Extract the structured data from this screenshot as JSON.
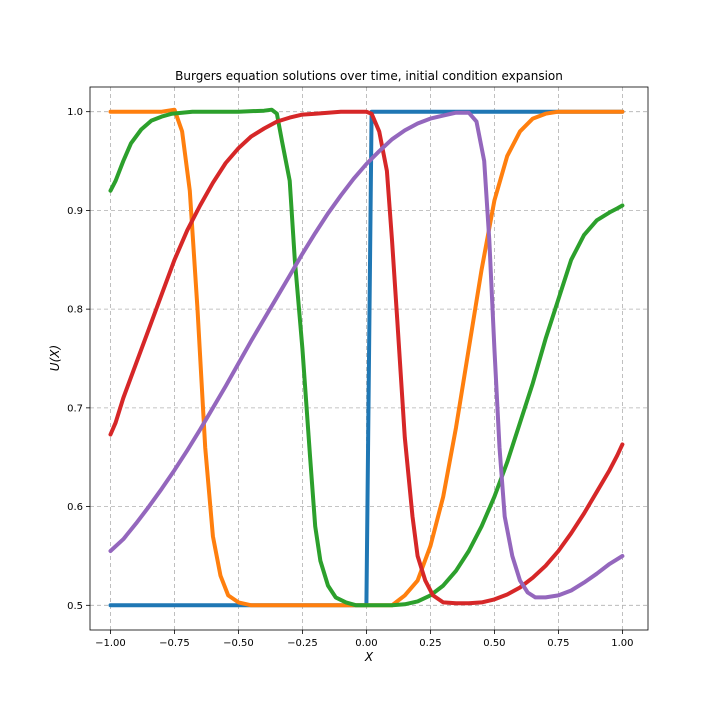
{
  "chart_data": {
    "type": "line",
    "title": "Burgers equation solutions over time, initial condition expansion",
    "xlabel": "X",
    "ylabel": "U(X)",
    "xlim": [
      -1.08,
      1.1
    ],
    "ylim": [
      0.475,
      1.025
    ],
    "xticks": [
      -1.0,
      -0.75,
      -0.5,
      -0.25,
      0.0,
      0.25,
      0.5,
      0.75,
      1.0
    ],
    "xtick_labels": [
      "−1.00",
      "−0.75",
      "−0.50",
      "−0.25",
      "0.00",
      "0.25",
      "0.50",
      "0.75",
      "1.00"
    ],
    "yticks": [
      0.5,
      0.6,
      0.7,
      0.8,
      0.9,
      1.0
    ],
    "ytick_labels": [
      "0.5",
      "0.6",
      "0.7",
      "0.8",
      "0.9",
      "1.0"
    ],
    "grid": true,
    "series": [
      {
        "color": "#1f77b4",
        "x": [
          -1.0,
          0.0,
          0.02,
          1.0
        ],
        "y": [
          0.5,
          0.5,
          1.0,
          1.0
        ]
      },
      {
        "color": "#ff7f0e",
        "x": [
          -1.0,
          -0.8,
          -0.75,
          -0.72,
          -0.69,
          -0.66,
          -0.63,
          -0.6,
          -0.57,
          -0.54,
          -0.5,
          -0.45,
          -0.3,
          -0.1,
          0.1,
          0.15,
          0.2,
          0.25,
          0.3,
          0.35,
          0.4,
          0.45,
          0.5,
          0.55,
          0.6,
          0.65,
          0.7,
          0.75,
          0.8,
          1.0
        ],
        "y": [
          1.0,
          1.0,
          1.002,
          0.98,
          0.92,
          0.8,
          0.66,
          0.57,
          0.53,
          0.51,
          0.503,
          0.5,
          0.5,
          0.5,
          0.5,
          0.51,
          0.525,
          0.56,
          0.61,
          0.68,
          0.76,
          0.84,
          0.91,
          0.955,
          0.98,
          0.993,
          0.998,
          1.0,
          1.0,
          1.0
        ]
      },
      {
        "color": "#2ca02c",
        "x": [
          -1.0,
          -0.98,
          -0.95,
          -0.92,
          -0.88,
          -0.84,
          -0.8,
          -0.76,
          -0.72,
          -0.68,
          -0.6,
          -0.5,
          -0.4,
          -0.37,
          -0.35,
          -0.33,
          -0.3,
          -0.28,
          -0.25,
          -0.22,
          -0.2,
          -0.18,
          -0.15,
          -0.12,
          -0.08,
          -0.04,
          0.0,
          0.05,
          0.1,
          0.15,
          0.2,
          0.25,
          0.3,
          0.35,
          0.4,
          0.45,
          0.5,
          0.55,
          0.6,
          0.65,
          0.7,
          0.75,
          0.8,
          0.85,
          0.9,
          0.95,
          0.98,
          1.0
        ],
        "y": [
          0.92,
          0.93,
          0.95,
          0.968,
          0.982,
          0.991,
          0.995,
          0.998,
          0.999,
          1.0,
          1.0,
          1.0,
          1.001,
          1.002,
          0.998,
          0.97,
          0.93,
          0.85,
          0.76,
          0.65,
          0.58,
          0.545,
          0.52,
          0.508,
          0.503,
          0.5,
          0.5,
          0.5,
          0.5,
          0.501,
          0.504,
          0.51,
          0.52,
          0.535,
          0.555,
          0.58,
          0.61,
          0.645,
          0.685,
          0.725,
          0.77,
          0.81,
          0.85,
          0.875,
          0.89,
          0.898,
          0.902,
          0.905
        ]
      },
      {
        "color": "#d62728",
        "x": [
          -1.0,
          -0.98,
          -0.95,
          -0.9,
          -0.85,
          -0.8,
          -0.75,
          -0.7,
          -0.65,
          -0.6,
          -0.55,
          -0.5,
          -0.45,
          -0.4,
          -0.35,
          -0.3,
          -0.25,
          -0.2,
          -0.15,
          -0.1,
          -0.05,
          0.0,
          0.02,
          0.05,
          0.08,
          0.1,
          0.12,
          0.15,
          0.18,
          0.2,
          0.23,
          0.26,
          0.3,
          0.35,
          0.4,
          0.45,
          0.5,
          0.55,
          0.6,
          0.65,
          0.7,
          0.75,
          0.8,
          0.85,
          0.9,
          0.95,
          0.98,
          1.0
        ],
        "y": [
          0.673,
          0.685,
          0.71,
          0.745,
          0.78,
          0.815,
          0.85,
          0.88,
          0.905,
          0.928,
          0.948,
          0.963,
          0.975,
          0.983,
          0.99,
          0.994,
          0.997,
          0.998,
          0.999,
          1.0,
          1.0,
          1.0,
          0.998,
          0.98,
          0.94,
          0.87,
          0.79,
          0.67,
          0.59,
          0.55,
          0.525,
          0.51,
          0.503,
          0.502,
          0.502,
          0.503,
          0.506,
          0.511,
          0.518,
          0.528,
          0.54,
          0.555,
          0.573,
          0.593,
          0.615,
          0.637,
          0.652,
          0.663
        ]
      },
      {
        "color": "#9467bd",
        "x": [
          -1.0,
          -0.95,
          -0.9,
          -0.85,
          -0.8,
          -0.75,
          -0.7,
          -0.65,
          -0.6,
          -0.55,
          -0.5,
          -0.45,
          -0.4,
          -0.35,
          -0.3,
          -0.25,
          -0.2,
          -0.15,
          -0.1,
          -0.05,
          0.0,
          0.05,
          0.1,
          0.15,
          0.2,
          0.25,
          0.3,
          0.35,
          0.4,
          0.43,
          0.46,
          0.48,
          0.5,
          0.52,
          0.54,
          0.57,
          0.6,
          0.63,
          0.66,
          0.7,
          0.75,
          0.8,
          0.85,
          0.9,
          0.95,
          1.0
        ],
        "y": [
          0.555,
          0.567,
          0.583,
          0.6,
          0.618,
          0.637,
          0.657,
          0.678,
          0.7,
          0.722,
          0.745,
          0.768,
          0.79,
          0.812,
          0.834,
          0.856,
          0.877,
          0.897,
          0.915,
          0.932,
          0.947,
          0.96,
          0.972,
          0.981,
          0.988,
          0.993,
          0.996,
          0.999,
          0.999,
          0.99,
          0.95,
          0.87,
          0.76,
          0.66,
          0.59,
          0.55,
          0.525,
          0.513,
          0.508,
          0.508,
          0.51,
          0.515,
          0.523,
          0.532,
          0.542,
          0.55
        ]
      }
    ]
  }
}
